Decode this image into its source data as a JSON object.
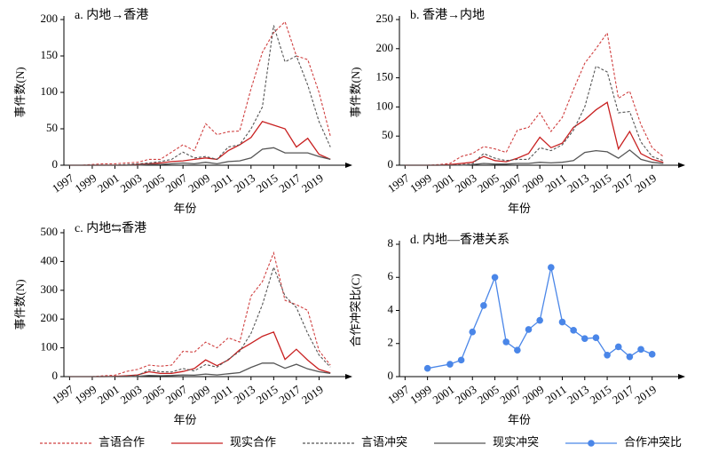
{
  "chart_data": [
    {
      "type": "line",
      "title": "a. 内地→香港",
      "x_label": "年份",
      "y_label": "事件数(N)",
      "x": [
        1997,
        1998,
        1999,
        2000,
        2001,
        2002,
        2003,
        2004,
        2005,
        2006,
        2007,
        2008,
        2009,
        2010,
        2011,
        2012,
        2013,
        2014,
        2015,
        2016,
        2017,
        2018,
        2019,
        2020
      ],
      "xlim": [
        1996.5,
        2021
      ],
      "xticks": [
        1997,
        1999,
        2001,
        2003,
        2005,
        2007,
        2009,
        2011,
        2013,
        2015,
        2017,
        2019
      ],
      "ylim": [
        0,
        200
      ],
      "yticks": [
        0,
        50,
        100,
        150,
        200
      ],
      "series": [
        {
          "name": "言语合作",
          "color": "#d04040",
          "dash": true,
          "values": [
            0,
            0,
            1,
            2,
            2,
            3,
            4,
            8,
            8,
            18,
            28,
            20,
            57,
            42,
            46,
            47,
            105,
            155,
            182,
            197,
            150,
            145,
            100,
            40
          ]
        },
        {
          "name": "现实合作",
          "color": "#c82020",
          "dash": false,
          "values": [
            0,
            0,
            0,
            0,
            0,
            0,
            1,
            2,
            3,
            5,
            6,
            8,
            10,
            8,
            20,
            28,
            38,
            60,
            55,
            50,
            25,
            37,
            15,
            8
          ]
        },
        {
          "name": "言语冲突",
          "color": "#555555",
          "dash": true,
          "values": [
            0,
            0,
            0,
            0,
            0,
            1,
            2,
            3,
            5,
            8,
            18,
            10,
            12,
            8,
            25,
            28,
            50,
            80,
            192,
            142,
            150,
            110,
            60,
            25
          ]
        },
        {
          "name": "现实冲突",
          "color": "#555555",
          "dash": false,
          "values": [
            0,
            0,
            0,
            0,
            0,
            0,
            0,
            1,
            1,
            2,
            3,
            2,
            4,
            2,
            5,
            6,
            10,
            22,
            24,
            17,
            17,
            17,
            12,
            8
          ]
        }
      ]
    },
    {
      "type": "line",
      "title": "b. 香港→内地",
      "x_label": "年份",
      "y_label": "事件数(N)",
      "x": [
        1997,
        1998,
        1999,
        2000,
        2001,
        2002,
        2003,
        2004,
        2005,
        2006,
        2007,
        2008,
        2009,
        2010,
        2011,
        2012,
        2013,
        2014,
        2015,
        2016,
        2017,
        2018,
        2019,
        2020
      ],
      "xlim": [
        1996.5,
        2021
      ],
      "xticks": [
        1997,
        1999,
        2001,
        2003,
        2005,
        2007,
        2009,
        2011,
        2013,
        2015,
        2017,
        2019
      ],
      "ylim": [
        0,
        250
      ],
      "yticks": [
        0,
        50,
        100,
        150,
        200,
        250
      ],
      "series": [
        {
          "color": "#d04040",
          "dash": true,
          "values": [
            0,
            0,
            0,
            1,
            3,
            15,
            20,
            32,
            28,
            22,
            60,
            65,
            90,
            58,
            82,
            130,
            175,
            200,
            227,
            115,
            127,
            70,
            30,
            15
          ]
        },
        {
          "color": "#c82020",
          "dash": false,
          "values": [
            0,
            0,
            0,
            0,
            1,
            3,
            5,
            15,
            8,
            6,
            12,
            20,
            48,
            30,
            38,
            65,
            78,
            95,
            108,
            28,
            58,
            20,
            10,
            5
          ]
        },
        {
          "color": "#555555",
          "dash": true,
          "values": [
            0,
            0,
            0,
            0,
            0,
            1,
            2,
            20,
            12,
            8,
            10,
            10,
            30,
            25,
            35,
            60,
            100,
            170,
            160,
            90,
            92,
            40,
            15,
            8
          ]
        },
        {
          "color": "#555555",
          "dash": false,
          "values": [
            0,
            0,
            0,
            0,
            0,
            0,
            1,
            3,
            2,
            2,
            3,
            3,
            5,
            4,
            5,
            8,
            22,
            25,
            23,
            12,
            26,
            10,
            5,
            3
          ]
        }
      ]
    },
    {
      "type": "line",
      "title": "c. 内地⇆香港",
      "x_label": "年份",
      "y_label": "事件数(N)",
      "x": [
        1997,
        1998,
        1999,
        2000,
        2001,
        2002,
        2003,
        2004,
        2005,
        2006,
        2007,
        2008,
        2009,
        2010,
        2011,
        2012,
        2013,
        2014,
        2015,
        2016,
        2017,
        2018,
        2019,
        2020
      ],
      "xlim": [
        1996.5,
        2021
      ],
      "xticks": [
        1997,
        1999,
        2001,
        2003,
        2005,
        2007,
        2009,
        2011,
        2013,
        2015,
        2017,
        2019
      ],
      "ylim": [
        0,
        500
      ],
      "yticks": [
        0,
        100,
        200,
        300,
        400,
        500
      ],
      "series": [
        {
          "color": "#d04040",
          "dash": true,
          "values": [
            0,
            0,
            0,
            3,
            5,
            18,
            25,
            40,
            36,
            40,
            88,
            85,
            120,
            100,
            135,
            120,
            280,
            330,
            430,
            265,
            250,
            230,
            90,
            40
          ]
        },
        {
          "color": "#c82020",
          "dash": false,
          "values": [
            0,
            0,
            0,
            0,
            1,
            3,
            6,
            17,
            11,
            11,
            18,
            28,
            58,
            38,
            58,
            93,
            116,
            140,
            155,
            60,
            95,
            57,
            25,
            13
          ]
        },
        {
          "color": "#555555",
          "dash": true,
          "values": [
            0,
            0,
            0,
            0,
            0,
            2,
            4,
            23,
            17,
            16,
            28,
            20,
            42,
            33,
            60,
            88,
            150,
            250,
            380,
            280,
            240,
            150,
            75,
            33
          ]
        },
        {
          "color": "#555555",
          "dash": false,
          "values": [
            0,
            0,
            0,
            0,
            0,
            0,
            1,
            4,
            3,
            4,
            6,
            5,
            9,
            6,
            10,
            14,
            32,
            47,
            47,
            29,
            43,
            27,
            17,
            11
          ]
        }
      ]
    },
    {
      "type": "line",
      "title": "d. 内地—香港关系",
      "x_label": "年份",
      "y_label": "合作冲突比(C)",
      "x": [
        1999,
        2001,
        2002,
        2003,
        2004,
        2005,
        2006,
        2007,
        2008,
        2009,
        2010,
        2011,
        2012,
        2013,
        2014,
        2015,
        2016,
        2017,
        2018,
        2019
      ],
      "xlim": [
        1996.5,
        2021
      ],
      "xticks": [
        1997,
        1999,
        2001,
        2003,
        2005,
        2007,
        2009,
        2011,
        2013,
        2015,
        2017,
        2019
      ],
      "ylim": [
        0,
        8
      ],
      "yticks": [
        0,
        2,
        4,
        6,
        8
      ],
      "series": [
        {
          "name": "合作冲突比",
          "color": "#4a86e8",
          "dash": false,
          "markers": true,
          "values": [
            0.5,
            0.75,
            1.0,
            2.7,
            4.3,
            6.0,
            2.1,
            1.6,
            2.85,
            3.4,
            6.6,
            3.3,
            2.8,
            2.3,
            2.35,
            1.3,
            1.8,
            1.2,
            1.65,
            1.35
          ]
        }
      ]
    }
  ]
}
